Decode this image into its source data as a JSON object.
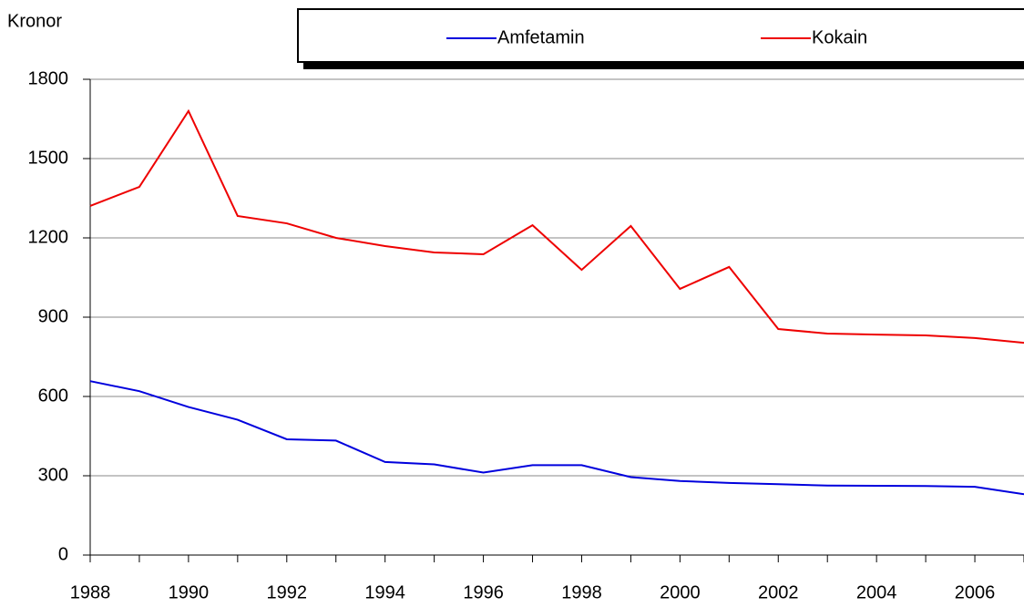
{
  "chart_data": {
    "type": "line",
    "y_label": "Kronor",
    "x": [
      1988,
      1989,
      1990,
      1991,
      1992,
      1993,
      1994,
      1995,
      1996,
      1997,
      1998,
      1999,
      2000,
      2001,
      2002,
      2003,
      2004,
      2005,
      2006,
      2007
    ],
    "series": [
      {
        "name": "Amfetamin",
        "color": "#0000dd",
        "values": [
          658,
          620,
          560,
          512,
          438,
          433,
          352,
          343,
          312,
          340,
          340,
          295,
          280,
          273,
          268,
          263,
          262,
          261,
          258,
          230
        ]
      },
      {
        "name": "Kokain",
        "color": "#ee0000",
        "values": [
          1321,
          1393,
          1680,
          1283,
          1255,
          1200,
          1169,
          1145,
          1138,
          1248,
          1079,
          1245,
          1007,
          1090,
          855,
          838,
          834,
          831,
          821,
          803
        ]
      }
    ],
    "xlim": [
      1988,
      2007
    ],
    "xticks": [
      1988,
      1990,
      1992,
      1994,
      1996,
      1998,
      2000,
      2002,
      2004,
      2006
    ],
    "ylim": [
      0,
      1800
    ],
    "yticks": [
      0,
      300,
      600,
      900,
      1200,
      1500,
      1800
    ],
    "grid": true,
    "legend": "top"
  }
}
